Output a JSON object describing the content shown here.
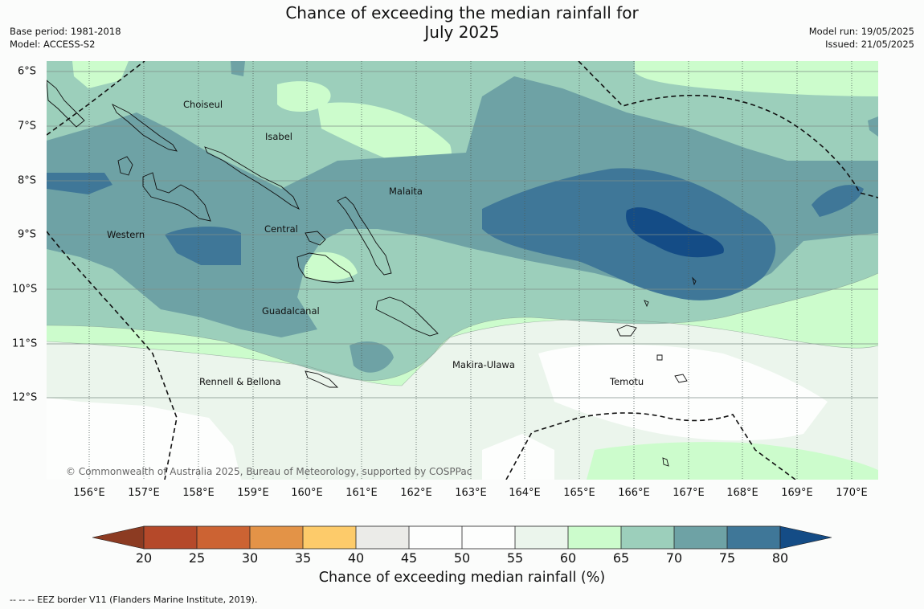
{
  "title_line1": "Chance of exceeding the median rainfall for",
  "title_line2": "July 2025",
  "base_period": "Base period: 1981-2018",
  "model": "Model: ACCESS-S2",
  "model_run": "Model run: 19/05/2025",
  "issued": "Issued: 21/05/2025",
  "copyright": "© Commonwealth of Australia 2025, Bureau of Meteorology, supported by COSPPac",
  "lon_labels": [
    "156°E",
    "157°E",
    "158°E",
    "159°E",
    "160°E",
    "161°E",
    "162°E",
    "163°E",
    "164°E",
    "165°E",
    "166°E",
    "167°E",
    "168°E",
    "169°E",
    "170°E"
  ],
  "lat_labels": [
    "6°S",
    "7°S",
    "8°S",
    "9°S",
    "10°S",
    "11°S",
    "12°S"
  ],
  "regions": {
    "choiseul": "Choiseul",
    "isabel": "Isabel",
    "malaita": "Malaita",
    "central": "Central",
    "western": "Western",
    "guadalcanal": "Guadalcanal",
    "rennell": "Rennell & Bellona",
    "makira": "Makira-Ulawa",
    "temotu": "Temotu"
  },
  "colorbar": {
    "label": "Chance of exceeding median rainfall (%)",
    "ticks": [
      "20",
      "25",
      "30",
      "35",
      "40",
      "45",
      "50",
      "55",
      "60",
      "65",
      "70",
      "75",
      "80"
    ],
    "colors": {
      "below_20": "#8c3b22",
      "b20_25": "#b5492a",
      "b25_30": "#cc6333",
      "b30_35": "#e39347",
      "b35_40": "#fdcb6a",
      "b40_45": "#ebebe8",
      "b45_50": "#fdfefd",
      "b50_55": "#fdfefd",
      "b55_60": "#ebf5ec",
      "b60_65": "#ccfccc",
      "b65_70": "#9ccfbb",
      "b70_75": "#6ea2a5",
      "b75_80": "#3f7798",
      "above_80": "#144c86"
    }
  },
  "footer": "--  --  -- EEZ border V11 (Flanders Marine Institute, 2019)."
}
